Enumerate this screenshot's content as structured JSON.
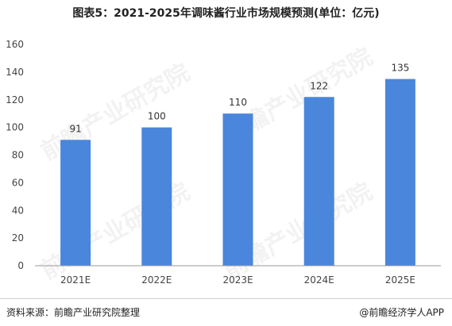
{
  "title": "图表5：2021-2025年调味酱行业市场规模预测(单位：亿元)",
  "footer": {
    "source": "资料来源：前瞻产业研究院整理",
    "credit": "@前瞻经济学人APP"
  },
  "watermark": "前瞻产业研究院",
  "colors": {
    "bar": "#4A86DB",
    "axis": "#999999",
    "text": "#333333"
  },
  "chart_data": {
    "type": "bar",
    "title": "图表5：2021-2025年调味酱行业市场规模预测(单位：亿元)",
    "categories": [
      "2021E",
      "2022E",
      "2023E",
      "2024E",
      "2025E"
    ],
    "values": [
      91,
      100,
      110,
      122,
      135
    ],
    "ylim": [
      0,
      160
    ],
    "yticks": [
      0,
      20,
      40,
      60,
      80,
      100,
      120,
      140,
      160
    ],
    "xlabel": "",
    "ylabel": "",
    "grid": false,
    "data_labels": true
  }
}
